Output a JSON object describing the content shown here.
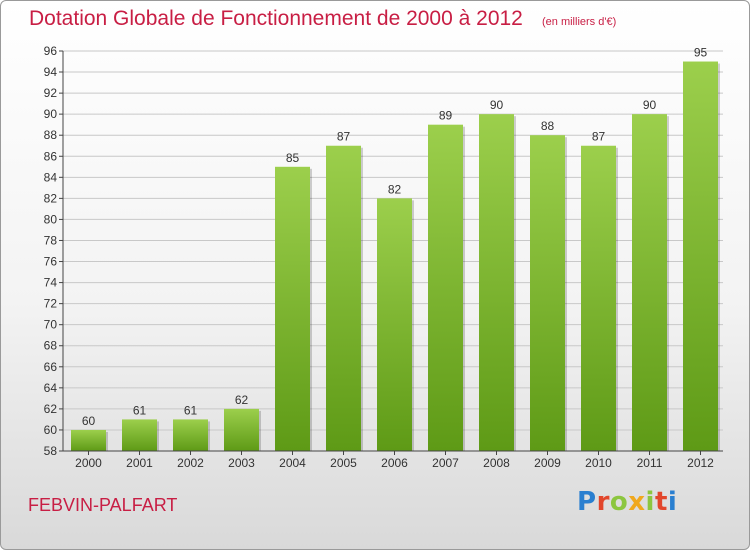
{
  "title": "Dotation Globale de Fonctionnement de 2000 à 2012",
  "unit_label": "(en milliers d'€)",
  "commune": "FEBVIN-PALFART",
  "logo": {
    "text": "Proxiti",
    "letter_colors": [
      "#2a7fd0",
      "#e2462b",
      "#8cc63f",
      "#f0a81d",
      "#8cc63f",
      "#e2462b",
      "#2a7fd0"
    ]
  },
  "colors": {
    "title": "#c81e44",
    "bar_top": "#9ccf4c",
    "bar_bottom": "#5e9a16",
    "grid": "#c8c8c8",
    "axis": "#444444"
  },
  "chart_data": {
    "type": "bar",
    "categories": [
      "2000",
      "2001",
      "2002",
      "2003",
      "2004",
      "2005",
      "2006",
      "2007",
      "2008",
      "2009",
      "2010",
      "2011",
      "2012"
    ],
    "values": [
      60,
      61,
      61,
      62,
      85,
      87,
      82,
      89,
      90,
      88,
      87,
      90,
      95
    ],
    "title": "Dotation Globale de Fonctionnement de 2000 à 2012",
    "subtitle": "(en milliers d'€)",
    "xlabel": "",
    "ylabel": "",
    "ylim": [
      58,
      96
    ],
    "yticks": [
      58,
      60,
      62,
      64,
      66,
      68,
      70,
      72,
      74,
      76,
      78,
      80,
      82,
      84,
      86,
      88,
      90,
      92,
      94,
      96
    ],
    "grid": true,
    "legend": "none"
  }
}
